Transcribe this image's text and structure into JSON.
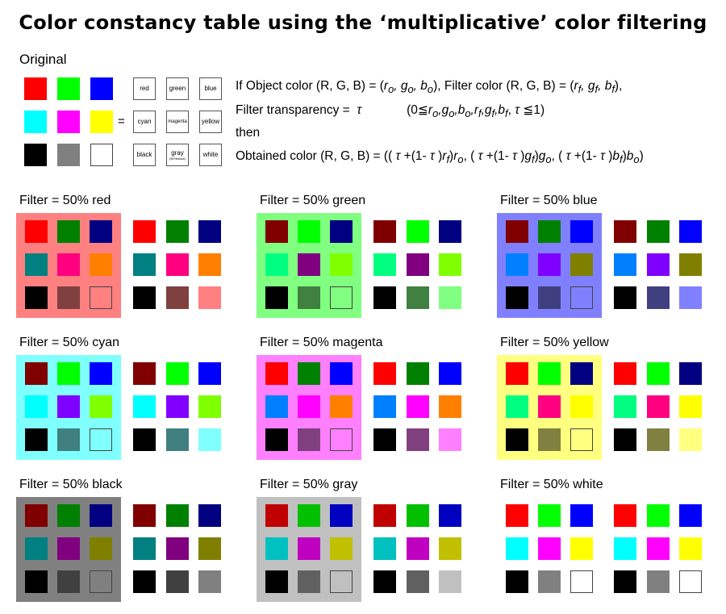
{
  "title": "Color constancy table using the ‘multiplicative’ color filtering",
  "original": {
    "label": "Original",
    "colors": [
      "#FF0000",
      "#00FF00",
      "#0000FF",
      "#00FFFF",
      "#FF00FF",
      "#FFFF00",
      "#000000",
      "#808080",
      "#FFFFFF"
    ],
    "names": [
      "red",
      "green",
      "blue",
      "cyan",
      "magenta",
      "yellow",
      "black",
      "gray",
      "white"
    ],
    "gray_note": "(50%black)",
    "equals": "="
  },
  "formula": {
    "line1": "If Object color (R, G, B) = (ro, go, bo), Filter color (R, G, B) = (rf, gf, bf),",
    "line2": "Filter transparency =  τ            (0≦ro,go,bo,rf,gf,bf, τ ≦1)",
    "line3": "then",
    "line4": "Obtained color (R, G, B) = (( τ +(1- τ )rf)ro, ( τ +(1- τ )gf)go, ( τ +(1- τ )bf)bo)"
  },
  "filters": [
    {
      "label": "Filter = 50% red",
      "bg": "#FF8080",
      "colors": [
        "#FF0000",
        "#008000",
        "#000080",
        "#008080",
        "#FF0080",
        "#FF8000",
        "#000000",
        "#804040",
        "#FF8080"
      ]
    },
    {
      "label": "Filter = 50% green",
      "bg": "#80FF80",
      "colors": [
        "#800000",
        "#00FF00",
        "#000080",
        "#00FF80",
        "#800080",
        "#80FF00",
        "#000000",
        "#408040",
        "#80FF80"
      ]
    },
    {
      "label": "Filter = 50% blue",
      "bg": "#8080FF",
      "colors": [
        "#800000",
        "#008000",
        "#0000FF",
        "#0080FF",
        "#8000FF",
        "#808000",
        "#000000",
        "#404080",
        "#8080FF"
      ]
    },
    {
      "label": "Filter = 50% cyan",
      "bg": "#80FFFF",
      "colors": [
        "#800000",
        "#00FF00",
        "#0000FF",
        "#00FFFF",
        "#8000FF",
        "#80FF00",
        "#000000",
        "#408080",
        "#80FFFF"
      ]
    },
    {
      "label": "Filter = 50% magenta",
      "bg": "#FF80FF",
      "colors": [
        "#FF0000",
        "#008000",
        "#0000FF",
        "#0080FF",
        "#FF00FF",
        "#FF8000",
        "#000000",
        "#804080",
        "#FF80FF"
      ]
    },
    {
      "label": "Filter = 50% yellow",
      "bg": "#FFFF80",
      "colors": [
        "#FF0000",
        "#00FF00",
        "#000080",
        "#00FF80",
        "#FF0080",
        "#FFFF00",
        "#000000",
        "#808040",
        "#FFFF80"
      ]
    },
    {
      "label": "Filter = 50% black",
      "bg": "#808080",
      "colors": [
        "#800000",
        "#008000",
        "#000080",
        "#008080",
        "#800080",
        "#808000",
        "#000000",
        "#404040",
        "#808080"
      ]
    },
    {
      "label": "Filter = 50% gray",
      "bg": "#C0C0C0",
      "colors": [
        "#C00000",
        "#00C000",
        "#0000C0",
        "#00C0C0",
        "#C000C0",
        "#C0C000",
        "#000000",
        "#606060",
        "#C0C0C0"
      ]
    },
    {
      "label": "Filter = 50% white",
      "bg": "",
      "colors": [
        "#FF0000",
        "#00FF00",
        "#0000FF",
        "#00FFFF",
        "#FF00FF",
        "#FFFF00",
        "#000000",
        "#808080",
        "#FFFFFF"
      ]
    }
  ]
}
